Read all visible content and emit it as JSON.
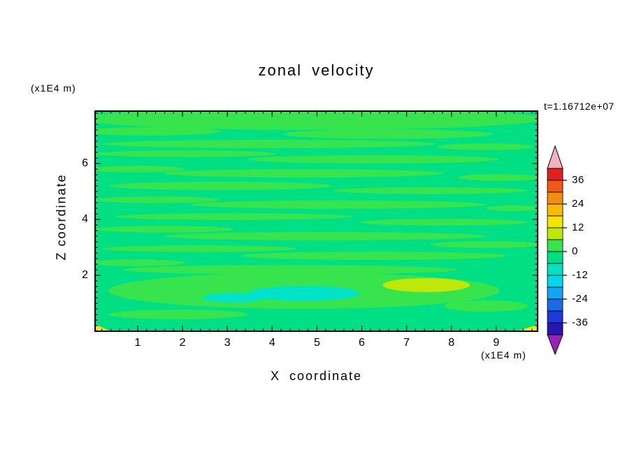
{
  "title": "zonal velocity",
  "timestamp": "t=1.16712e+07",
  "axes": {
    "x_label": "X coordinate",
    "y_label": "Z coordinate",
    "x_unit": "(x1E4 m)",
    "y_unit": "(x1E4 m)",
    "x_ticks": [
      1,
      2,
      3,
      4,
      5,
      6,
      7,
      8,
      9
    ],
    "y_ticks": [
      2,
      4,
      6
    ]
  },
  "colorbar": {
    "labels": [
      "36",
      "24",
      "12",
      "0",
      "-12",
      "-24",
      "-36"
    ],
    "segment_colors": [
      "#e02020",
      "#f05818",
      "#f68c0e",
      "#fab905",
      "#f6e400",
      "#bfe80a",
      "#38e44e",
      "#00df84",
      "#00e2c4",
      "#00d8ee",
      "#12a6f2",
      "#1b6ae8",
      "#2038d8",
      "#2814b4"
    ],
    "top_arrow_color": "#f0b4be",
    "bottom_arrow_color": "#9922bb"
  },
  "chart_data": {
    "type": "heatmap",
    "title": "zonal velocity",
    "xlabel": "X coordinate (x1E4 m)",
    "ylabel": "Z coordinate (x1E4 m)",
    "x_range": [
      0,
      9.9
    ],
    "z_range": [
      0,
      7.9
    ],
    "value_range": [
      -42,
      42
    ],
    "contour_interval": 6,
    "colorbar_labels": [
      36,
      24,
      12,
      0,
      -12,
      -24,
      -36
    ],
    "legend_position": "right",
    "grid": false,
    "description": "Filled contour field of zonal velocity; values mostly between -6 and 6 (green) with thin horizontal streaks, cyan patches near z=1.3 around x=3-5, a yellow-green maximum near x=7.4 z=1.6, and small yellow/orange extremes at the bottom corners.",
    "band_colors": {
      "base": "#00df84",
      "A": "#38e44e",
      "cyan": "#00e3c8",
      "yellowgreen": "#c0e70a",
      "yellow": "#f4e50a",
      "orange": "#f5930e"
    },
    "band_values": {
      "base": "-6 to 0",
      "A": "0 to 6",
      "cyan": "-18 to -6",
      "yellowgreen": "6 to 12",
      "yellow": "12 to 18",
      "orange": "18 to 24"
    },
    "features": [
      {
        "x": 4.87,
        "z": 7.6,
        "rx": 5.15,
        "rz": 0.4,
        "b": "A"
      },
      {
        "x": 1.28,
        "z": 7.15,
        "rx": 1.56,
        "rz": 0.15,
        "b": "A"
      },
      {
        "x": 6.58,
        "z": 7.05,
        "rx": 2.34,
        "rz": 0.17,
        "b": "A"
      },
      {
        "x": 3.93,
        "z": 6.7,
        "rx": 3.74,
        "rz": 0.15,
        "b": "A"
      },
      {
        "x": 8.77,
        "z": 6.6,
        "rx": 1.09,
        "rz": 0.12,
        "b": "A"
      },
      {
        "x": 2.06,
        "z": 6.35,
        "rx": 2.03,
        "rz": 0.12,
        "b": "A"
      },
      {
        "x": 6.27,
        "z": 6.15,
        "rx": 2.8,
        "rz": 0.15,
        "b": "A"
      },
      {
        "x": 0.97,
        "z": 5.8,
        "rx": 1.09,
        "rz": 0.12,
        "b": "A"
      },
      {
        "x": 4.71,
        "z": 5.65,
        "rx": 3.12,
        "rz": 0.15,
        "b": "A"
      },
      {
        "x": 9.08,
        "z": 5.5,
        "rx": 0.94,
        "rz": 0.12,
        "b": "A"
      },
      {
        "x": 2.84,
        "z": 5.2,
        "rx": 2.5,
        "rz": 0.15,
        "b": "A"
      },
      {
        "x": 7.52,
        "z": 5.03,
        "rx": 2.18,
        "rz": 0.12,
        "b": "A"
      },
      {
        "x": 1.44,
        "z": 4.7,
        "rx": 1.4,
        "rz": 0.12,
        "b": "A"
      },
      {
        "x": 5.49,
        "z": 4.53,
        "rx": 3.28,
        "rz": 0.15,
        "b": "A"
      },
      {
        "x": 9.39,
        "z": 4.4,
        "rx": 0.62,
        "rz": 0.1,
        "b": "A"
      },
      {
        "x": 3.15,
        "z": 4.1,
        "rx": 2.65,
        "rz": 0.12,
        "b": "A"
      },
      {
        "x": 7.83,
        "z": 3.9,
        "rx": 1.87,
        "rz": 0.12,
        "b": "A"
      },
      {
        "x": 1.59,
        "z": 3.65,
        "rx": 1.56,
        "rz": 0.12,
        "b": "A"
      },
      {
        "x": 5.18,
        "z": 3.4,
        "rx": 3.59,
        "rz": 0.15,
        "b": "A"
      },
      {
        "x": 8.77,
        "z": 3.1,
        "rx": 1.25,
        "rz": 0.12,
        "b": "A"
      },
      {
        "x": 2.37,
        "z": 2.95,
        "rx": 2.18,
        "rz": 0.12,
        "b": "A"
      },
      {
        "x": 6.27,
        "z": 2.7,
        "rx": 2.96,
        "rz": 0.15,
        "b": "A"
      },
      {
        "x": 0.97,
        "z": 2.45,
        "rx": 1.09,
        "rz": 0.12,
        "b": "A"
      },
      {
        "x": 4.4,
        "z": 2.2,
        "rx": 3.74,
        "rz": 0.17,
        "b": "A"
      },
      {
        "x": 4.71,
        "z": 1.45,
        "rx": 4.37,
        "rz": 0.65,
        "b": "A"
      },
      {
        "x": 4.71,
        "z": 1.35,
        "rx": 1.25,
        "rz": 0.27,
        "b": "cyan"
      },
      {
        "x": 3.15,
        "z": 1.2,
        "rx": 0.7,
        "rz": 0.17,
        "b": "cyan"
      },
      {
        "x": 7.44,
        "z": 1.65,
        "rx": 0.97,
        "rz": 0.25,
        "b": "yellowgreen"
      },
      {
        "x": 8.77,
        "z": 0.9,
        "rx": 0.94,
        "rz": 0.2,
        "b": "A"
      },
      {
        "x": 1.9,
        "z": 0.6,
        "rx": 1.56,
        "rz": 0.17,
        "b": "A"
      },
      {
        "poly": [
          [
            0,
            0.28
          ],
          [
            0.4,
            0
          ],
          [
            0,
            0
          ]
        ],
        "b": "yellow"
      },
      {
        "poly": [
          [
            0,
            0.12
          ],
          [
            0.15,
            0
          ],
          [
            0,
            0
          ]
        ],
        "b": "orange"
      },
      {
        "poly": [
          [
            9.9,
            0.22
          ],
          [
            9.9,
            0
          ],
          [
            9.45,
            0
          ]
        ],
        "b": "yellow"
      }
    ]
  }
}
